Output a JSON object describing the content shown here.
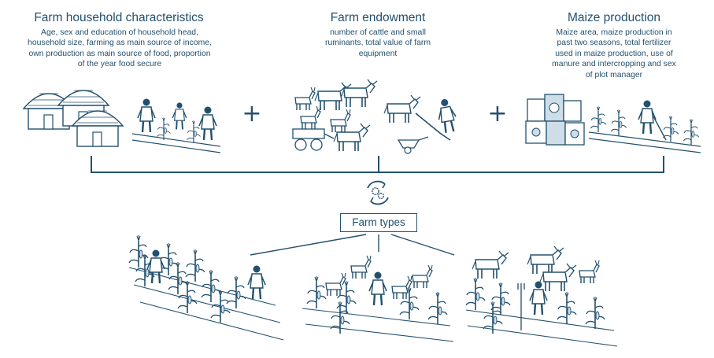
{
  "categories": [
    {
      "title": "Farm household characteristics",
      "lines": [
        "Age, sex and education of household head,",
        "household size, farming as main source of income,",
        "own production as main source of food, proportion",
        "of the year food secure"
      ]
    },
    {
      "title": "Farm endowment",
      "lines": [
        "number of cattle and small",
        "ruminants, total value of farm",
        "equipment"
      ]
    },
    {
      "title": "Maize production",
      "lines": [
        "Maize area, maize production in",
        "past two seasons, total fertilizer",
        "used in maize production, use of",
        "manure and intercropping and sex",
        "of plot manager"
      ]
    }
  ],
  "plus_symbol": "+",
  "center": {
    "icon": "recycle-gears-icon",
    "label": "Farm types"
  },
  "illustrations": {
    "household": "huts-and-farmers-illustration",
    "endowment": "livestock-and-equipment-illustration",
    "maize": "fertilizer-bags-and-maize-field-illustration",
    "type1": "two-farmers-in-maize-field-illustration",
    "type2": "farmer-with-goats-illustration",
    "type3": "farmer-with-cattle-illustration"
  },
  "colors": {
    "ink": "#23506e",
    "light": "#cfdde8",
    "background": "#ffffff"
  }
}
